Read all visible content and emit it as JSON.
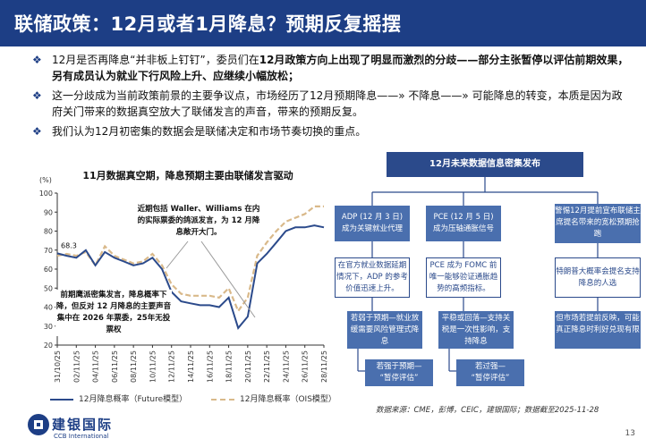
{
  "header": {
    "title": "联储政策：12月或者1月降息？预期反复摇摆"
  },
  "bullets": [
    {
      "pre": "12月是否再降息“并非板上钉钉”，委员们在",
      "bold": "12月政策方向上出现了明显而激烈的分歧——部分主张暂停以评估前期效果，另有成员认为就业下行风险上升、应继续小幅放松；",
      "post": ""
    },
    {
      "pre": "这一分歧成为当前政策前景的主要争议点，市场经历了12月预期降息——» 不降息——» 可能降息的转变，本质是因为政府关门带来的数据真空放大了联储发言的声音，带来的预期反复。",
      "bold": "",
      "post": ""
    },
    {
      "pre": "我们认为12月初密集的数据会是联储决定和市场节奏切换的重点。",
      "bold": "",
      "post": ""
    }
  ],
  "chart": {
    "title": "11月数据真空期，降息预期主要由联储发言驱动",
    "unit": "(%)",
    "annotation_value": "68.3",
    "callout_top": "近期包括 Waller、Williams 在内的实际票委的鸽派发言，为 12 月降息敞开大门。",
    "callout_bottom": "前期鹰派密集发言，降息概率下降，但反对 12 月降息的主要声音集中在 2026 年票委，25年无投票权"
  },
  "chart_data": {
    "type": "line",
    "x": [
      "31/10/25",
      "01/11/25",
      "02/11/25",
      "03/11/25",
      "04/11/25",
      "05/11/25",
      "06/11/25",
      "07/11/25",
      "08/11/25",
      "09/11/25",
      "10/11/25",
      "11/11/25",
      "12/11/25",
      "13/11/25",
      "14/11/25",
      "15/11/25",
      "16/11/25",
      "17/11/25",
      "18/11/25",
      "19/11/25",
      "20/11/25",
      "21/11/25",
      "22/11/25",
      "23/11/25",
      "24/11/25",
      "25/11/25",
      "26/11/25",
      "27/11/25",
      "28/11/25"
    ],
    "xticks": [
      "31/10/25",
      "02/11/25",
      "04/11/25",
      "06/11/25",
      "08/11/25",
      "10/11/25",
      "12/11/25",
      "14/11/25",
      "16/11/25",
      "18/11/25",
      "20/11/25",
      "22/11/25",
      "24/11/25",
      "26/11/25",
      "28/11/25"
    ],
    "ylim": [
      20,
      100
    ],
    "yticks": [
      20,
      30,
      40,
      50,
      60,
      70,
      80,
      90,
      100
    ],
    "series": [
      {
        "name": "12月降息概率（Future模型）",
        "color": "#2b4a8b",
        "dash": false,
        "values": [
          68.3,
          67,
          66,
          70,
          62,
          69,
          66,
          64,
          62,
          63,
          66,
          60,
          48,
          43,
          42,
          41,
          41,
          40,
          45,
          29,
          35,
          63,
          68,
          74,
          80,
          82,
          82,
          83,
          82
        ]
      },
      {
        "name": "12月降息概率（OIS模型）",
        "color": "#d9b98a",
        "dash": true,
        "values": [
          67,
          68,
          67,
          69,
          62,
          72,
          67,
          65,
          63,
          64,
          68,
          62,
          52,
          47,
          46,
          46,
          46,
          45,
          50,
          38,
          45,
          67,
          74,
          80,
          85,
          87,
          89,
          93,
          93
        ]
      }
    ]
  },
  "diagram": {
    "top": "12月未来数据信息密集发布",
    "col1": [
      "ADP (12 月 3 日)\n成为关键就业代理",
      "在官方就业数据延期情况下，ADP 的参考价值迅速上升。",
      "若弱于预期—就业放缓需要风险管理式降息",
      "若强于预期—\n“暂停评估”"
    ],
    "col2": [
      "PCE (12 月 5 日)\n成为压轴通胀信号",
      "PCE 成为 FOMC 前唯一能够验证通胀趋势的高频指标。",
      "平稳或回落—支持关税是一次性影响，支持降息",
      "若过强—\n“暂停评估”"
    ],
    "col3": [
      "警惕12月提前宣布联储主席提名带来的宽松预期抢跑",
      "特朗普大概率会提名支持降息的人选",
      "但市场若提前反映，可能真正降息时利好兑现有限"
    ]
  },
  "source": "数据来源：CME，彭博，CEIC，建银国际；数据截至2025-11-28",
  "footer": {
    "logo_name": "建银国际",
    "logo_sub": "CCB International",
    "page": "13"
  }
}
